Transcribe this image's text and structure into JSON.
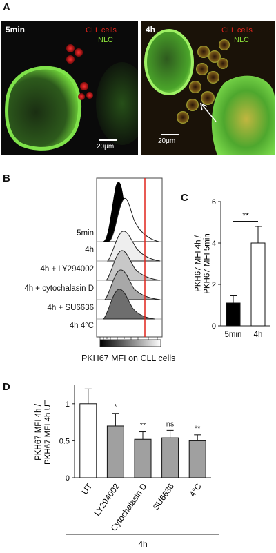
{
  "panel_a": {
    "letter": "A",
    "left_image": {
      "time": "5min",
      "cll_label": "CLL cells",
      "nlc_label": "NLC",
      "scale": "20μm"
    },
    "right_image": {
      "time": "4h",
      "cll_label": "CLL cells",
      "nlc_label": "NLC",
      "scale": "20μm"
    }
  },
  "panel_b": {
    "letter": "B",
    "conditions": [
      "5min",
      "4h",
      "4h + LY294002",
      "4h + cytochalasin D",
      "4h + SU6636",
      "4h 4°C"
    ],
    "xlabel": "PKH67 MFI on CLL cells",
    "marker_color": "#e0241c"
  },
  "panel_c": {
    "letter": "C"
  },
  "panel_d": {
    "letter": "D"
  },
  "chart_data": [
    {
      "panel": "C",
      "type": "bar",
      "categories": [
        "5min",
        "4h"
      ],
      "values": [
        1.1,
        4.0
      ],
      "errors": [
        0.35,
        0.8
      ],
      "colors": [
        "#000000",
        "#ffffff"
      ],
      "ylabel": "PKH67 MFI 4h /\nPKH67 MFI 5min",
      "ylim": [
        0,
        6
      ],
      "yticks": [
        0,
        2,
        4,
        6
      ],
      "annotations": [
        {
          "between": [
            "5min",
            "4h"
          ],
          "text": "**"
        }
      ]
    },
    {
      "panel": "D",
      "type": "bar",
      "categories": [
        "UT",
        "LY294002",
        "Cytochalasin D",
        "SU6636",
        "4°C"
      ],
      "values": [
        1.0,
        0.7,
        0.52,
        0.54,
        0.5
      ],
      "errors": [
        0.2,
        0.17,
        0.1,
        0.1,
        0.08
      ],
      "colors": [
        "#ffffff",
        "#a0a0a0",
        "#a0a0a0",
        "#a0a0a0",
        "#a0a0a0"
      ],
      "significance": [
        "",
        "*",
        "**",
        "ns",
        "**"
      ],
      "ylabel": "PKH67 MFI 4h /\nPKH67 MFI 4h UT",
      "ylim": [
        0,
        1.25
      ],
      "yticks": [
        0,
        0.5,
        1
      ],
      "group_label": "4h"
    }
  ]
}
